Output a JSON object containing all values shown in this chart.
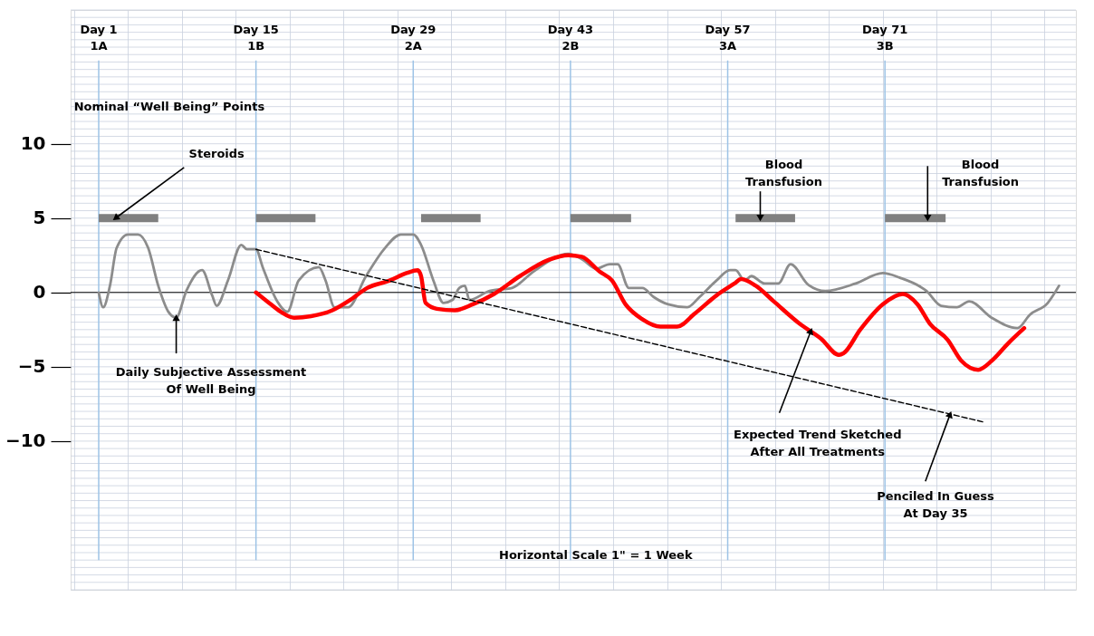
{
  "chart_data": {
    "type": "line",
    "ylabel": "Nominal “Well Being” Points",
    "xlabel": "Horizontal Scale 1\" = 1 Week",
    "xlim": [
      -1.5,
      88
    ],
    "ylim": [
      -20,
      19
    ],
    "yticks": [
      10,
      5,
      0,
      -5,
      -10
    ],
    "tick_labels": "y",
    "grid": true,
    "marker": "none",
    "series": [
      {
        "type": "line",
        "color": "#8c8c8c",
        "x": [
          1.0,
          1.4,
          2.0,
          2.6,
          3.6,
          4.5,
          5.4,
          6.3,
          7.2,
          7.9,
          8.8,
          10.2,
          11.1,
          11.5,
          12.5,
          13.7,
          14.2,
          15.0,
          15.6,
          16.9,
          17.8,
          18.8,
          20.6,
          21.2,
          22.0,
          23.2,
          24.8,
          26.5,
          27.9,
          29.0,
          29.7,
          30.8,
          31.7,
          32.5,
          33.1,
          33.6,
          34.0,
          35.8,
          37.8,
          39.7,
          42.8,
          44.1,
          45.3,
          46.5,
          47.2,
          48.2,
          49.4,
          50.4,
          51.7,
          53.4,
          54.5,
          56.0,
          57.2,
          57.7,
          58.5,
          59.1,
          60.3,
          61.5,
          62.6,
          64.2,
          65.7,
          68.4,
          70.8,
          72.3,
          74.7,
          76.0,
          77.4,
          78.5,
          80.5,
          82.8,
          83.9,
          85.5,
          86.5
        ],
        "values": [
          0,
          -1.0,
          0.45,
          3.0,
          3.9,
          3.9,
          3.0,
          0.45,
          -1.3,
          -1.7,
          0.1,
          1.5,
          -0.2,
          -0.9,
          0.8,
          3.2,
          2.9,
          2.9,
          1.7,
          -0.6,
          -1.3,
          0.8,
          1.7,
          0.8,
          -1.0,
          -1.0,
          1.1,
          3.0,
          3.9,
          3.9,
          3.2,
          0.8,
          -0.7,
          -0.5,
          0.3,
          0.45,
          -0.5,
          0.1,
          0.3,
          1.4,
          2.6,
          2.2,
          1.6,
          1.9,
          1.9,
          0.3,
          0.3,
          -0.3,
          -0.8,
          -1.0,
          -0.3,
          0.8,
          1.5,
          1.5,
          0.8,
          1.1,
          0.6,
          0.6,
          1.9,
          0.5,
          0.1,
          0.6,
          1.3,
          1.0,
          0.1,
          -0.9,
          -1.0,
          -0.6,
          -1.7,
          -2.4,
          -1.5,
          -0.7,
          0.45
        ]
      },
      {
        "type": "line",
        "color": "#ff0000",
        "x": [
          15.0,
          16.0,
          17.2,
          18.4,
          19.9,
          21.8,
          23.4,
          24.9,
          26.9,
          28.4,
          29.4,
          29.7,
          30.1,
          31.1,
          32.7,
          34.3,
          36.2,
          38.5,
          41.1,
          42.8,
          44.0,
          45.6,
          46.7,
          47.9,
          49.4,
          51.0,
          52.5,
          54.1,
          56.0,
          57.6,
          58.2,
          59.5,
          61.1,
          63.4,
          65.3,
          66.9,
          67.3,
          68.8,
          70.8,
          72.6,
          73.9,
          75.0,
          76.6,
          77.8,
          79.3,
          80.5,
          82.0,
          83.4
        ],
        "values": [
          0,
          -0.6,
          -1.3,
          -1.7,
          -1.6,
          -1.2,
          -0.5,
          0.3,
          0.8,
          1.3,
          1.5,
          1.1,
          -0.7,
          -1.1,
          -1.2,
          -0.8,
          -0.1,
          1.1,
          2.2,
          2.5,
          2.4,
          1.4,
          0.8,
          -0.8,
          -1.8,
          -2.3,
          -2.3,
          -1.4,
          -0.2,
          0.6,
          0.9,
          0.45,
          -0.6,
          -2.1,
          -3.1,
          -4.2,
          -4.1,
          -2.5,
          -0.8,
          -0.1,
          -0.8,
          -2.1,
          -3.2,
          -4.6,
          -5.2,
          -4.6,
          -3.4,
          -2.4
        ]
      },
      {
        "type": "line",
        "color": "#000000",
        "line_style": "dashed",
        "x": [
          15.0,
          79.7
        ],
        "values": [
          2.9,
          -8.7
        ]
      },
      {
        "type": "line",
        "color": "#808080",
        "x": [
          1.0,
          6.3,
          10,
          15.0,
          20.3,
          25,
          29.7,
          35.0,
          39,
          43.0,
          48.4,
          53,
          57.7,
          63.0,
          67,
          71.0,
          76.4
        ],
        "values": [
          5,
          5,
          null,
          5,
          5,
          null,
          5,
          5,
          null,
          5,
          5,
          null,
          5,
          5,
          null,
          5,
          5
        ]
      }
    ],
    "ref_lines": [
      {
        "axis": "x",
        "value": 1,
        "label": "Day 1\n1A",
        "color": "#9dc3e6"
      },
      {
        "axis": "x",
        "value": 15,
        "label": "Day 15\n1B",
        "color": "#9dc3e6"
      },
      {
        "axis": "x",
        "value": 29,
        "label": "Day 29\n2A",
        "color": "#9dc3e6"
      },
      {
        "axis": "x",
        "value": 43,
        "label": "Day 43\n2B",
        "color": "#9dc3e6"
      },
      {
        "axis": "x",
        "value": 57,
        "label": "Day 57\n3A",
        "color": "#9dc3e6"
      },
      {
        "axis": "x",
        "value": 71,
        "label": "Day 71\n3B",
        "color": "#9dc3e6"
      },
      {
        "axis": "y",
        "value": 0,
        "color": "#000000"
      }
    ],
    "annotations": [
      {
        "text": "Steroids",
        "x": 2.5,
        "y": 5
      },
      {
        "text": "Daily Subjective Assessment\nOf Well Being",
        "x": 7.9,
        "y": -1.7
      },
      {
        "text": "Blood\nTransfusion",
        "x": 59.9,
        "y": 5
      },
      {
        "text": "Blood\nTransfusion",
        "x": 74.8,
        "y": 5
      },
      {
        "text": "Expected Trend Sketched\nAfter All Treatments",
        "x": 64.4,
        "y": -2.6
      },
      {
        "text": "Penciled In Guess\nAt Day 35",
        "x": 76.8,
        "y": -8.2
      }
    ]
  }
}
